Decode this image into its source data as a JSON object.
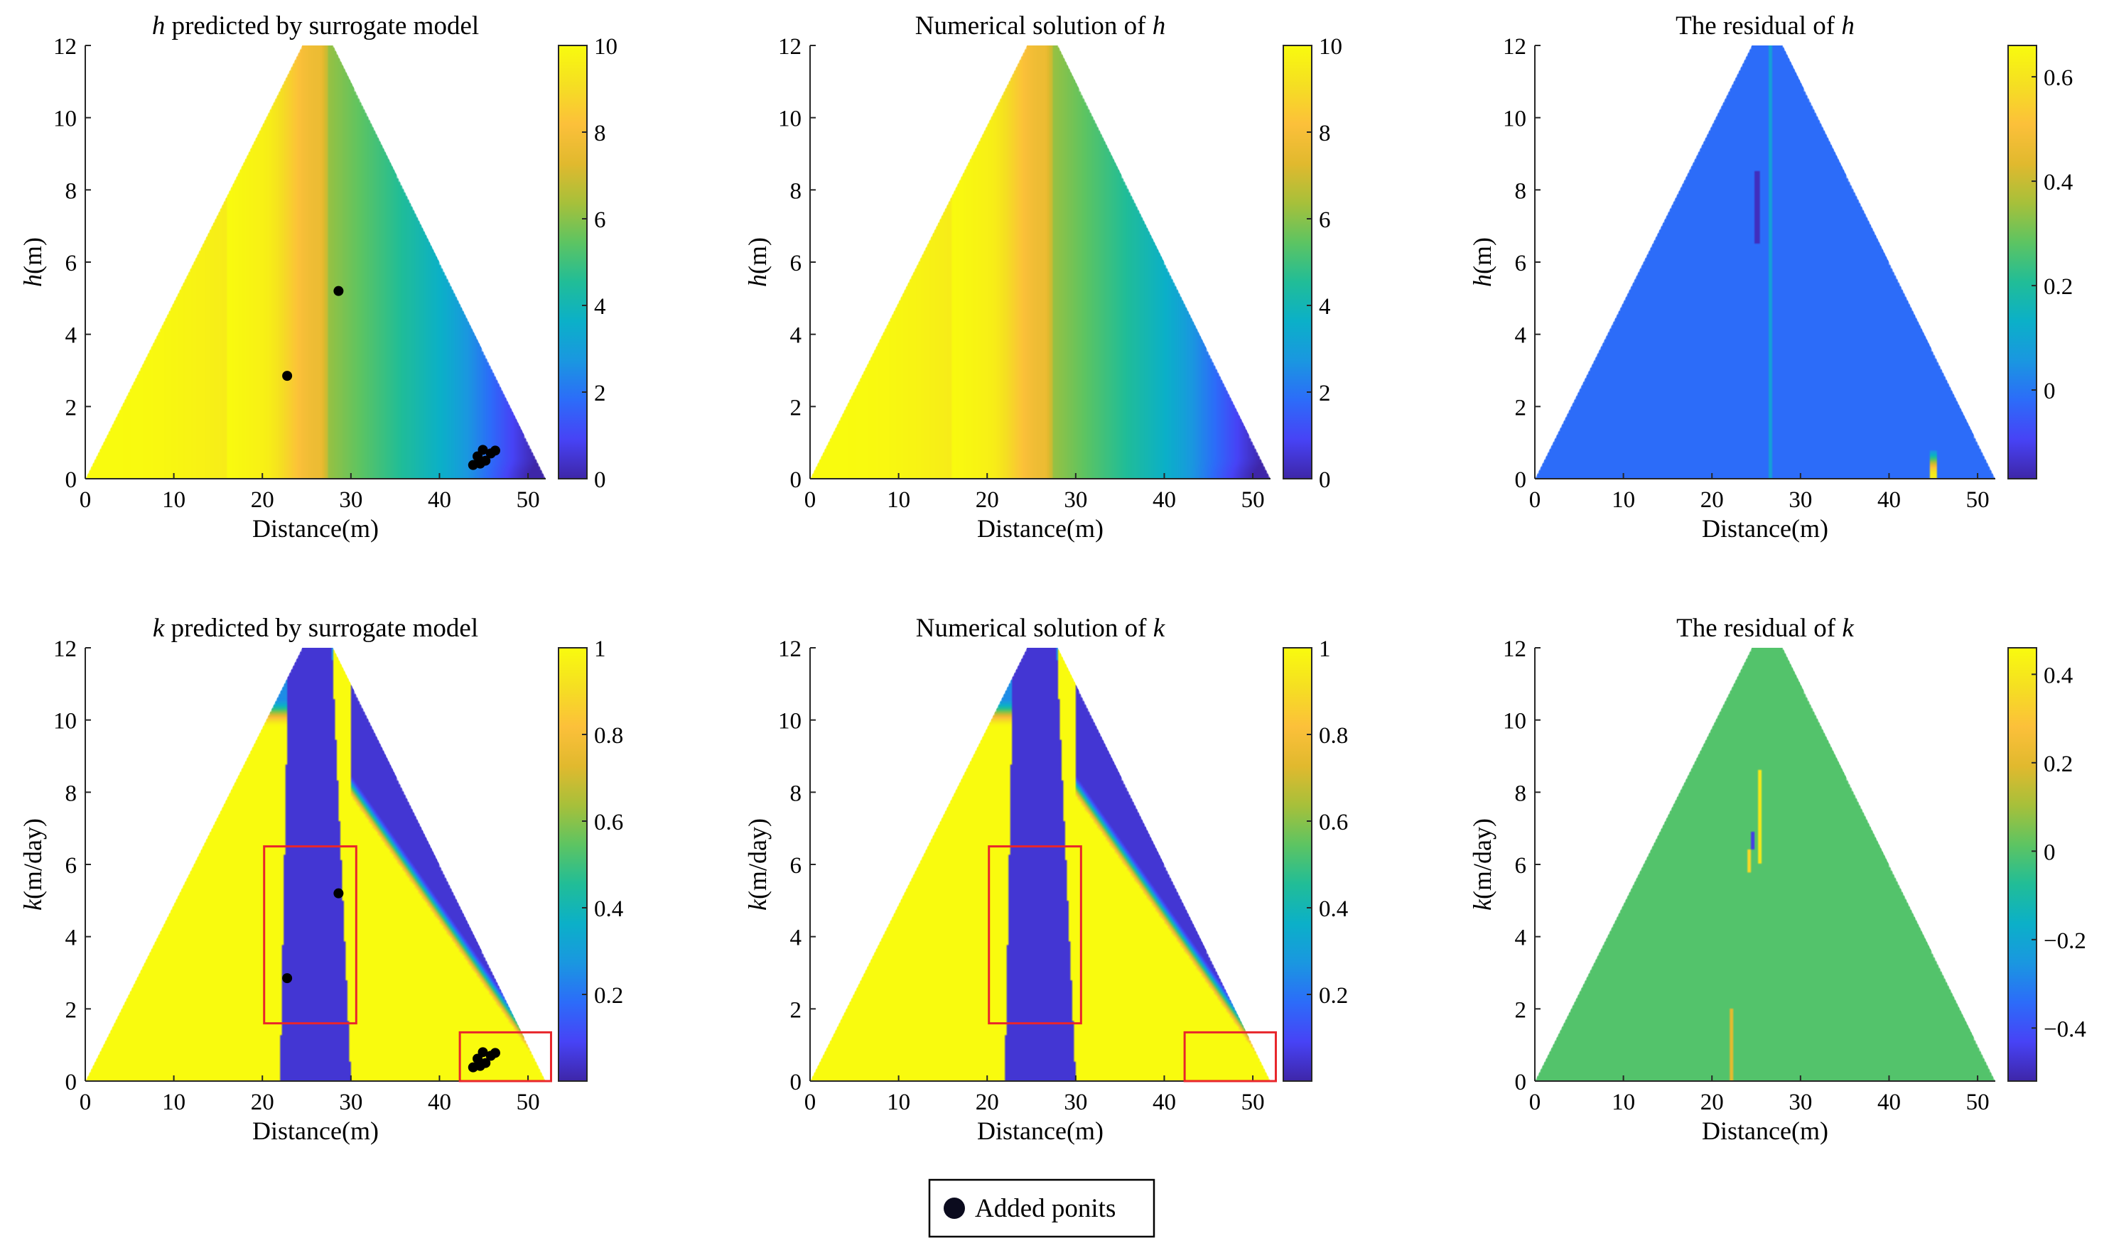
{
  "figure": {
    "legend_label": "Added ponits",
    "colors": {
      "parula": [
        "#3e26a8",
        "#4743f6",
        "#2c6cf9",
        "#1a97e0",
        "#0bb0c8",
        "#21bd97",
        "#5dc462",
        "#a7c03a",
        "#e1b92e",
        "#fcc03a",
        "#f5df22",
        "#f9fb0e"
      ],
      "marker": "#000000",
      "highlight_box": "#e8262b",
      "axis": "#262626"
    }
  },
  "chart_data": [
    {
      "id": "h-predicted",
      "type": "heatmap",
      "title_var": "h",
      "title_rest": " predicted by surrogate model",
      "xlabel": "Distance(m)",
      "ylabel_var": "h",
      "ylabel_unit": "(m)",
      "xlim": [
        0,
        52
      ],
      "ylim": [
        0,
        12
      ],
      "xticks": [
        0,
        10,
        20,
        30,
        40,
        50
      ],
      "yticks": [
        0,
        2,
        4,
        6,
        8,
        10,
        12
      ],
      "clim": [
        0,
        10
      ],
      "cticks": [
        0,
        2,
        4,
        6,
        8,
        10
      ],
      "ctick_labels": [
        "0",
        "2",
        "4",
        "6",
        "8",
        "10"
      ],
      "domain_polygon": [
        [
          0,
          0
        ],
        [
          52,
          0
        ],
        [
          28,
          12
        ],
        [
          24.5,
          12
        ]
      ],
      "field": "head",
      "points": [
        [
          28.6,
          5.2
        ],
        [
          22.8,
          2.85
        ],
        [
          43.8,
          0.38
        ],
        [
          44.3,
          0.62
        ],
        [
          44.9,
          0.8
        ],
        [
          45.2,
          0.5
        ],
        [
          45.8,
          0.7
        ],
        [
          44.6,
          0.42
        ],
        [
          46.3,
          0.78
        ]
      ],
      "boxes": []
    },
    {
      "id": "h-numerical",
      "type": "heatmap",
      "title_var": "h",
      "title_rest": "Numerical solution of ",
      "title_var_last": true,
      "xlabel": "Distance(m)",
      "ylabel_var": "h",
      "ylabel_unit": "(m)",
      "xlim": [
        0,
        52
      ],
      "ylim": [
        0,
        12
      ],
      "xticks": [
        0,
        10,
        20,
        30,
        40,
        50
      ],
      "yticks": [
        0,
        2,
        4,
        6,
        8,
        10,
        12
      ],
      "clim": [
        0,
        10
      ],
      "cticks": [
        0,
        2,
        4,
        6,
        8,
        10
      ],
      "ctick_labels": [
        "0",
        "2",
        "4",
        "6",
        "8",
        "10"
      ],
      "domain_polygon": [
        [
          0,
          0
        ],
        [
          52,
          0
        ],
        [
          28,
          12
        ],
        [
          24.5,
          12
        ]
      ],
      "field": "head",
      "points": [],
      "boxes": []
    },
    {
      "id": "h-residual",
      "type": "heatmap",
      "title_var": "h",
      "title_rest": "The residual of ",
      "title_var_last": true,
      "xlabel": "Distance(m)",
      "ylabel_var": "h",
      "ylabel_unit": "(m)",
      "xlim": [
        0,
        52
      ],
      "ylim": [
        0,
        12
      ],
      "xticks": [
        0,
        10,
        20,
        30,
        40,
        50
      ],
      "yticks": [
        0,
        2,
        4,
        6,
        8,
        10,
        12
      ],
      "clim": [
        -0.17,
        0.66
      ],
      "cticks": [
        0,
        0.2,
        0.4,
        0.6
      ],
      "ctick_labels": [
        "0",
        "0.2",
        "0.4",
        "0.6"
      ],
      "domain_polygon": [
        [
          0,
          0
        ],
        [
          52,
          0
        ],
        [
          28,
          12
        ],
        [
          24.5,
          12
        ]
      ],
      "field": "residual_h",
      "points": [],
      "boxes": []
    },
    {
      "id": "k-predicted",
      "type": "heatmap",
      "title_var": "k",
      "title_rest": " predicted by surrogate model",
      "xlabel": "Distance(m)",
      "ylabel_var": "k",
      "ylabel_unit": "(m/day)",
      "xlim": [
        0,
        52
      ],
      "ylim": [
        0,
        12
      ],
      "xticks": [
        0,
        10,
        20,
        30,
        40,
        50
      ],
      "yticks": [
        0,
        2,
        4,
        6,
        8,
        10,
        12
      ],
      "clim": [
        0,
        1
      ],
      "cticks": [
        0.2,
        0.4,
        0.6,
        0.8,
        1
      ],
      "ctick_labels": [
        "0.2",
        "0.4",
        "0.6",
        "0.8",
        "1"
      ],
      "domain_polygon": [
        [
          0,
          0
        ],
        [
          52,
          0
        ],
        [
          28,
          12
        ],
        [
          24.5,
          12
        ]
      ],
      "field": "conductivity",
      "points": [
        [
          28.6,
          5.2
        ],
        [
          22.8,
          2.85
        ],
        [
          43.8,
          0.38
        ],
        [
          44.3,
          0.62
        ],
        [
          44.9,
          0.8
        ],
        [
          45.2,
          0.5
        ],
        [
          45.8,
          0.7
        ],
        [
          44.6,
          0.42
        ],
        [
          46.3,
          0.78
        ]
      ],
      "boxes": [
        [
          20.2,
          1.6,
          30.6,
          6.5
        ],
        [
          42.3,
          0,
          52.6,
          1.35
        ]
      ]
    },
    {
      "id": "k-numerical",
      "type": "heatmap",
      "title_var": "k",
      "title_rest": "Numerical solution of ",
      "title_var_last": true,
      "xlabel": "Distance(m)",
      "ylabel_var": "k",
      "ylabel_unit": "(m/day)",
      "xlim": [
        0,
        52
      ],
      "ylim": [
        0,
        12
      ],
      "xticks": [
        0,
        10,
        20,
        30,
        40,
        50
      ],
      "yticks": [
        0,
        2,
        4,
        6,
        8,
        10,
        12
      ],
      "clim": [
        0,
        1
      ],
      "cticks": [
        0.2,
        0.4,
        0.6,
        0.8,
        1
      ],
      "ctick_labels": [
        "0.2",
        "0.4",
        "0.6",
        "0.8",
        "1"
      ],
      "domain_polygon": [
        [
          0,
          0
        ],
        [
          52,
          0
        ],
        [
          28,
          12
        ],
        [
          24.5,
          12
        ]
      ],
      "field": "conductivity",
      "points": [],
      "boxes": [
        [
          20.2,
          1.6,
          30.6,
          6.5
        ],
        [
          42.3,
          0,
          52.6,
          1.35
        ]
      ]
    },
    {
      "id": "k-residual",
      "type": "heatmap",
      "title_var": "k",
      "title_rest": "The residual of ",
      "title_var_last": true,
      "xlabel": "Distance(m)",
      "ylabel_var": "k",
      "ylabel_unit": "(m/day)",
      "xlim": [
        0,
        52
      ],
      "ylim": [
        0,
        12
      ],
      "xticks": [
        0,
        10,
        20,
        30,
        40,
        50
      ],
      "yticks": [
        0,
        2,
        4,
        6,
        8,
        10,
        12
      ],
      "clim": [
        -0.52,
        0.46
      ],
      "cticks": [
        -0.4,
        -0.2,
        0,
        0.2,
        0.4
      ],
      "ctick_labels": [
        "−0.4",
        "−0.2",
        "0",
        "0.2",
        "0.4"
      ],
      "domain_polygon": [
        [
          0,
          0
        ],
        [
          52,
          0
        ],
        [
          28,
          12
        ],
        [
          24.5,
          12
        ]
      ],
      "field": "residual_k",
      "points": [],
      "boxes": []
    }
  ]
}
